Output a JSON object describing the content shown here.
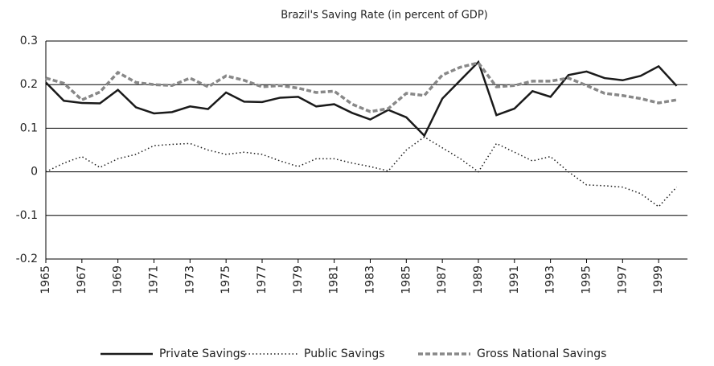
{
  "chart_data": {
    "type": "line",
    "title": "Brazil's Saving Rate (in percent of GDP)",
    "x": [
      1965,
      1966,
      1967,
      1968,
      1969,
      1970,
      1971,
      1972,
      1973,
      1974,
      1975,
      1976,
      1977,
      1978,
      1979,
      1980,
      1981,
      1982,
      1983,
      1984,
      1985,
      1986,
      1987,
      1988,
      1989,
      1990,
      1991,
      1992,
      1993,
      1994,
      1995,
      1996,
      1997,
      1998,
      1999,
      2000
    ],
    "series": [
      {
        "name": "Private Savings",
        "color": "#1a1a1a",
        "style": "solid",
        "values": [
          0.205,
          0.163,
          0.158,
          0.157,
          0.188,
          0.148,
          0.134,
          0.137,
          0.15,
          0.144,
          0.182,
          0.161,
          0.16,
          0.17,
          0.172,
          0.15,
          0.155,
          0.135,
          0.12,
          0.142,
          0.125,
          0.083,
          0.168,
          0.21,
          0.252,
          0.13,
          0.145,
          0.185,
          0.172,
          0.222,
          0.23,
          0.215,
          0.21,
          0.22,
          0.242,
          0.197
        ]
      },
      {
        "name": "Public Savings",
        "color": "#1a1a1a",
        "style": "dotted",
        "values": [
          0.0,
          0.02,
          0.035,
          0.01,
          0.03,
          0.04,
          0.06,
          0.063,
          0.065,
          0.05,
          0.04,
          0.045,
          0.04,
          0.025,
          0.012,
          0.03,
          0.03,
          0.02,
          0.012,
          0.002,
          0.05,
          0.08,
          0.055,
          0.03,
          0.0,
          0.065,
          0.045,
          0.025,
          0.035,
          0.0,
          -0.03,
          -0.032,
          -0.035,
          -0.05,
          -0.08,
          -0.035
        ]
      },
      {
        "name": "Gross National Savings",
        "color": "#888888",
        "style": "dashed",
        "values": [
          0.215,
          0.203,
          0.165,
          0.183,
          0.228,
          0.205,
          0.2,
          0.198,
          0.215,
          0.195,
          0.22,
          0.21,
          0.195,
          0.198,
          0.192,
          0.182,
          0.185,
          0.155,
          0.138,
          0.145,
          0.18,
          0.175,
          0.222,
          0.24,
          0.25,
          0.195,
          0.198,
          0.208,
          0.208,
          0.215,
          0.198,
          0.18,
          0.175,
          0.168,
          0.158,
          0.165
        ]
      }
    ],
    "xlim": [
      1965,
      2000.6
    ],
    "xticks": [
      1965,
      1967,
      1969,
      1971,
      1973,
      1975,
      1977,
      1979,
      1981,
      1983,
      1985,
      1987,
      1989,
      1991,
      1993,
      1995,
      1997,
      1999
    ],
    "ylim": [
      -0.2,
      0.3
    ],
    "yticks": [
      0.3,
      0.2,
      0.1,
      0,
      -0.1,
      -0.2
    ],
    "grid": true,
    "legend": "bottom"
  }
}
